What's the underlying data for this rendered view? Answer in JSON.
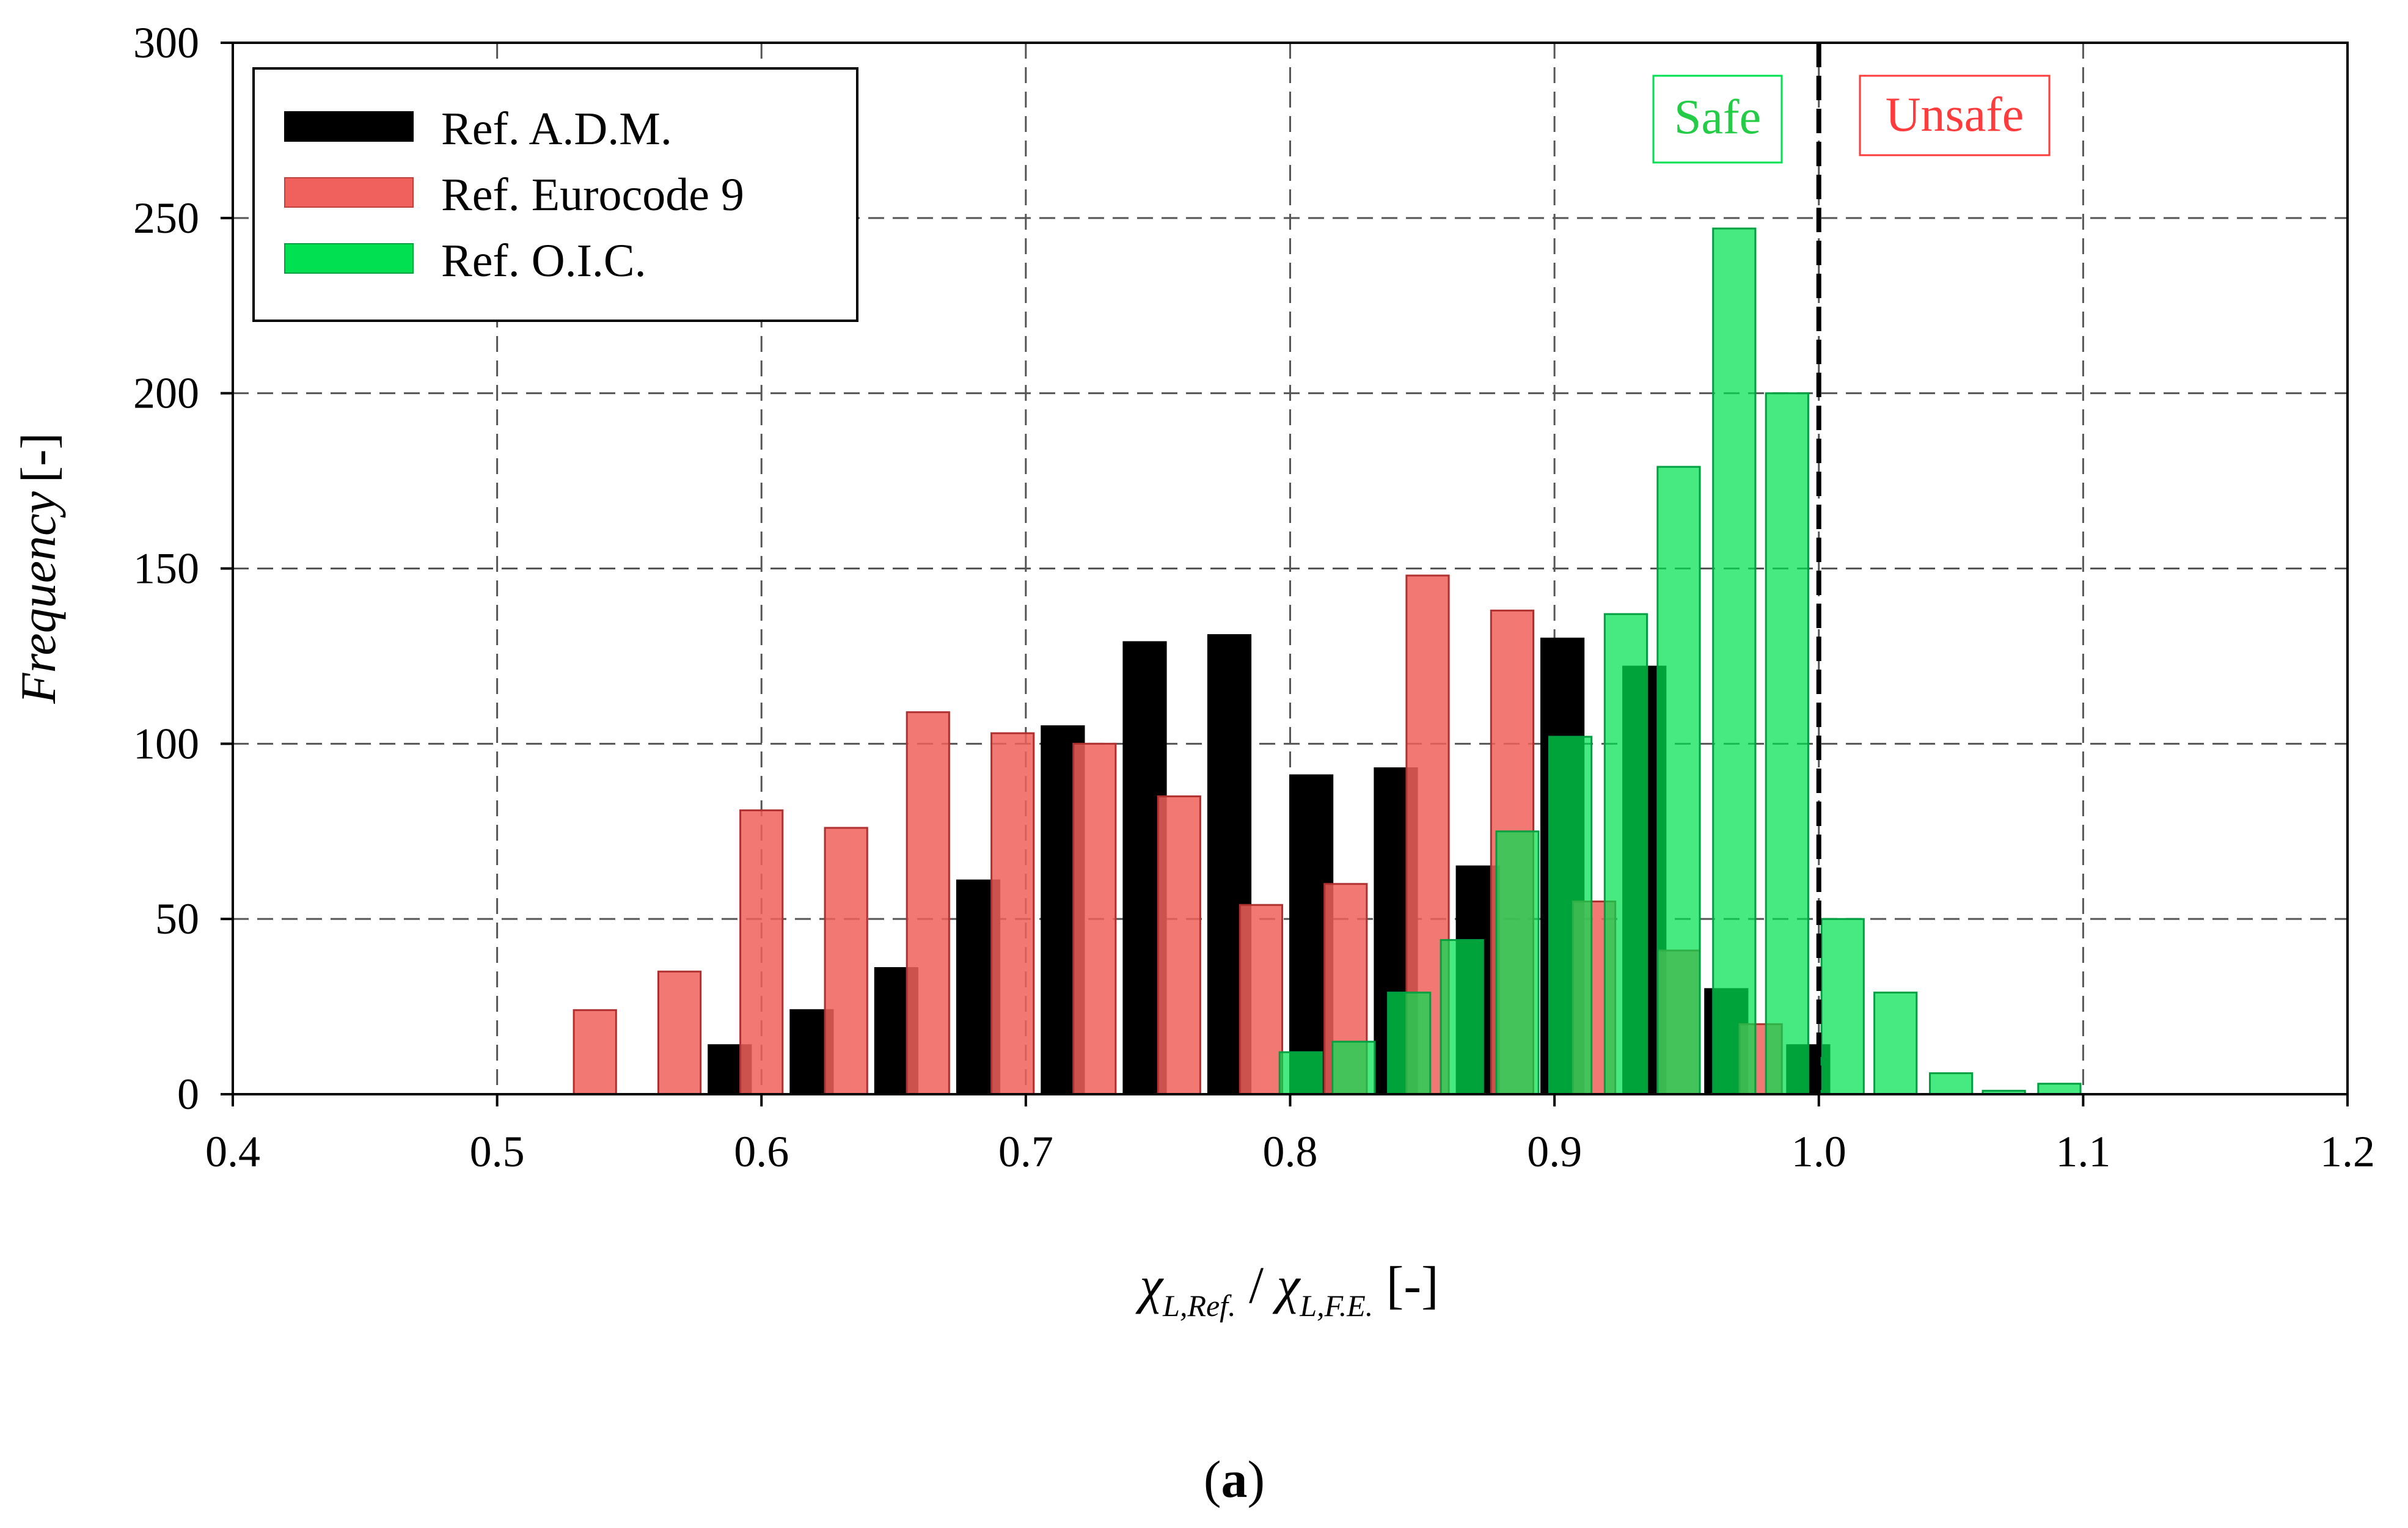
{
  "caption": "(a)",
  "labels": {
    "safe": "Safe",
    "unsafe": "Unsafe"
  },
  "colors": {
    "adm": "#000000",
    "ec9": "#f0605c",
    "oic": "#00e050",
    "safe_text": "#22cc44",
    "unsafe_text": "#ff3b3b",
    "grid": "#555555"
  },
  "chart_data": {
    "type": "bar",
    "xlabel": {
      "symbol": "χ",
      "sub1": "L,Ref.",
      "sep": " / ",
      "sub2": "L,F.E.",
      "unit": " [-]"
    },
    "ylabel": {
      "name": "Frequency",
      "unit": "[-]"
    },
    "xlim": [
      0.4,
      1.2
    ],
    "ylim": [
      0,
      300
    ],
    "xticks": [
      0.4,
      0.5,
      0.6,
      0.7,
      0.8,
      0.9,
      1.0,
      1.1,
      1.2
    ],
    "xtick_labels": [
      "0.4",
      "0.5",
      "0.6",
      "0.7",
      "0.8",
      "0.9",
      "1.0",
      "1.1",
      "1.2"
    ],
    "yticks": [
      0,
      50,
      100,
      150,
      200,
      250,
      300
    ],
    "ytick_labels": [
      "0",
      "50",
      "100",
      "150",
      "200",
      "250",
      "300"
    ],
    "bin_width": 0.016,
    "threshold": 1.0,
    "grid": true,
    "legend_position": "top-left",
    "series": [
      {
        "name": "Ref. A.D.M.",
        "key": "adm",
        "x": [
          0.588,
          0.619,
          0.651,
          0.682,
          0.714,
          0.745,
          0.777,
          0.808,
          0.84,
          0.871,
          0.903,
          0.934,
          0.965,
          0.996
        ],
        "values": [
          14,
          24,
          36,
          61,
          105,
          129,
          131,
          91,
          93,
          65,
          130,
          122,
          30,
          14
        ]
      },
      {
        "name": "Ref. Eurocode 9",
        "key": "ec9",
        "x": [
          0.537,
          0.569,
          0.6,
          0.632,
          0.663,
          0.695,
          0.726,
          0.758,
          0.789,
          0.821,
          0.852,
          0.884,
          0.915,
          0.947,
          0.978
        ],
        "values": [
          24,
          35,
          81,
          76,
          109,
          103,
          100,
          85,
          54,
          60,
          148,
          138,
          55,
          41,
          20
        ]
      },
      {
        "name": "Ref. O.I.C.",
        "key": "oic",
        "x": [
          0.804,
          0.824,
          0.845,
          0.865,
          0.886,
          0.906,
          0.927,
          0.947,
          0.968,
          0.988,
          1.009,
          1.029,
          1.05,
          1.07,
          1.091
        ],
        "values": [
          12,
          15,
          29,
          44,
          75,
          102,
          137,
          179,
          247,
          200,
          50,
          29,
          6,
          1,
          3
        ]
      }
    ]
  }
}
